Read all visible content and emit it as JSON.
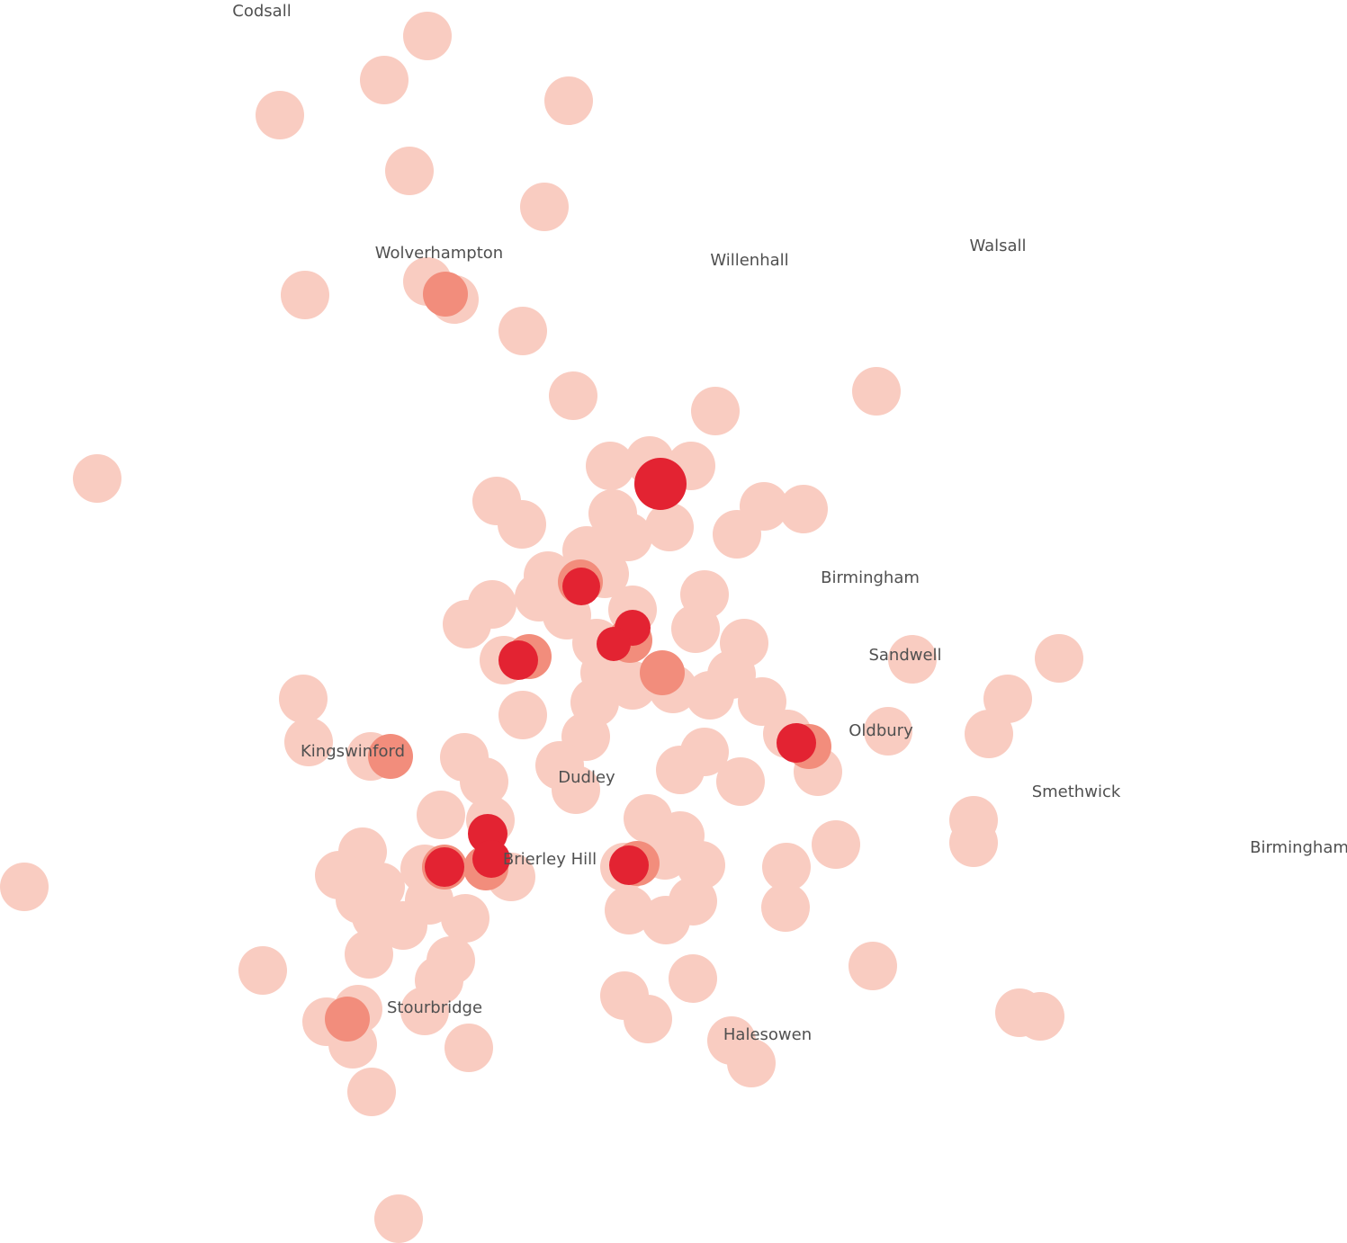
{
  "map": {
    "colors": {
      "background": "#ffffff",
      "label": "#505050",
      "tier_low": "#f9ccc1",
      "tier_mid": "#f28d7c",
      "tier_high": "#e32332"
    },
    "labels": [
      {
        "id": "codsall",
        "text": "Codsall"
      },
      {
        "id": "wolverhampton",
        "text": "Wolverhampton"
      },
      {
        "id": "willenhall",
        "text": "Willenhall"
      },
      {
        "id": "walsall",
        "text": "Walsall"
      },
      {
        "id": "birmingham-north",
        "text": "Birmingham"
      },
      {
        "id": "sandwell",
        "text": "Sandwell"
      },
      {
        "id": "oldbury",
        "text": "Oldbury"
      },
      {
        "id": "kingswinford",
        "text": "Kingswinford"
      },
      {
        "id": "dudley",
        "text": "Dudley"
      },
      {
        "id": "smethwick",
        "text": "Smethwick"
      },
      {
        "id": "birmingham-east",
        "text": "Birmingham"
      },
      {
        "id": "brierley-hill",
        "text": "Brierley Hill"
      },
      {
        "id": "stourbridge",
        "text": "Stourbridge"
      },
      {
        "id": "halesowen",
        "text": "Halesowen"
      }
    ]
  }
}
